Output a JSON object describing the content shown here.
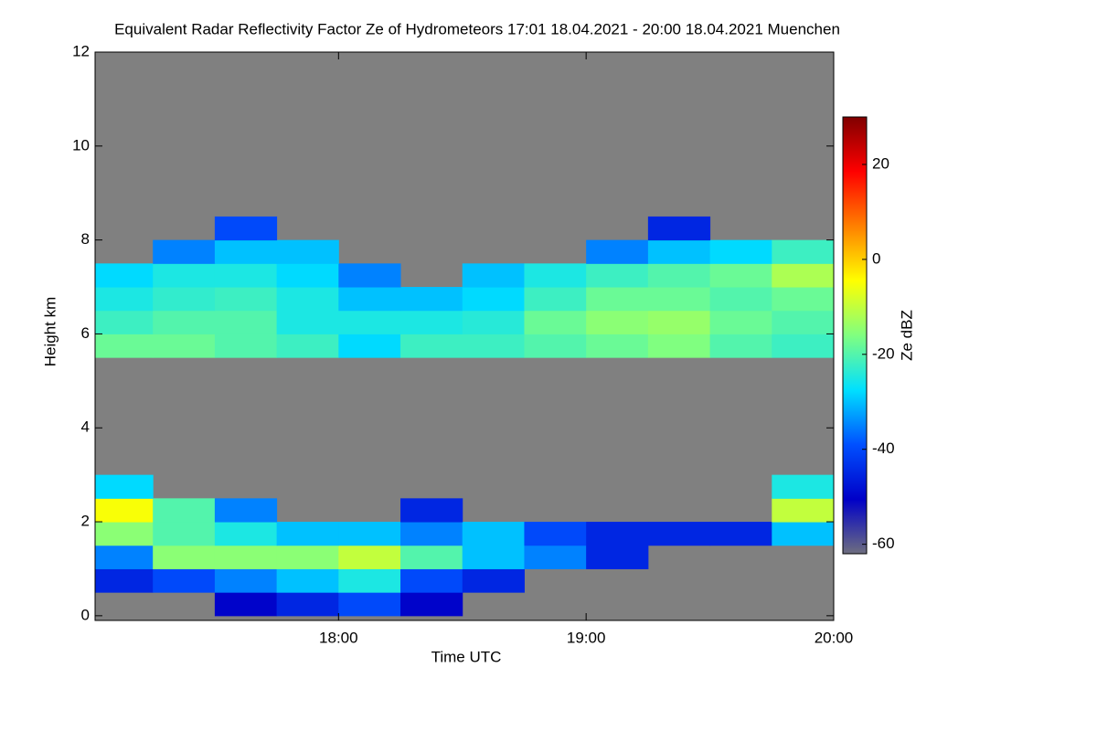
{
  "chart_data": {
    "type": "heatmap",
    "title": "Equivalent Radar Reflectivity Factor Ze of Hydrometeors   17:01 18.04.2021 - 20:00 18.04.2021 Muenchen",
    "x_label": "Time UTC",
    "y_label": "Height km",
    "colorbar_label": "Ze dBZ",
    "x": [
      17.125,
      17.375,
      17.625,
      17.875,
      18.125,
      18.375,
      18.625,
      18.875,
      19.125,
      19.375,
      19.625,
      19.875
    ],
    "y": [
      0.25,
      0.75,
      1.25,
      1.75,
      2.25,
      2.75,
      3.25,
      3.75,
      4.25,
      4.75,
      5.25,
      5.75,
      6.25,
      6.75,
      7.25,
      7.75,
      8.25
    ],
    "z": [
      [
        null,
        null,
        -50,
        -45,
        -40,
        -50,
        null,
        null,
        null,
        null,
        null,
        null
      ],
      [
        -45,
        -40,
        -35,
        -30,
        -25,
        -40,
        -45,
        null,
        null,
        null,
        null,
        null
      ],
      [
        -35,
        -15,
        -15,
        -15,
        -10,
        -20,
        -30,
        -35,
        -45,
        null,
        null,
        null
      ],
      [
        -15,
        -20,
        -25,
        -30,
        -30,
        -35,
        -30,
        -40,
        -45,
        -45,
        -45,
        -30
      ],
      [
        -5,
        -20,
        -35,
        null,
        null,
        -45,
        null,
        null,
        null,
        null,
        null,
        -10
      ],
      [
        -28,
        null,
        null,
        null,
        null,
        null,
        null,
        null,
        null,
        null,
        null,
        -25
      ],
      [
        null,
        null,
        null,
        null,
        null,
        null,
        null,
        null,
        null,
        null,
        null,
        null
      ],
      [
        null,
        null,
        null,
        null,
        null,
        null,
        null,
        null,
        null,
        null,
        null,
        null
      ],
      [
        null,
        null,
        null,
        null,
        null,
        null,
        null,
        null,
        null,
        null,
        null,
        null
      ],
      [
        null,
        null,
        null,
        null,
        null,
        null,
        null,
        null,
        null,
        null,
        null,
        null
      ],
      [
        null,
        null,
        null,
        null,
        null,
        null,
        null,
        null,
        null,
        null,
        null,
        null
      ],
      [
        -18,
        -18,
        -20,
        -22,
        -28,
        -22,
        -22,
        -20,
        -18,
        -16,
        -20,
        -22
      ],
      [
        -22,
        -20,
        -20,
        -25,
        -25,
        -25,
        -24,
        -18,
        -15,
        -14,
        -18,
        -20
      ],
      [
        -25,
        -23,
        -22,
        -25,
        -30,
        -30,
        -28,
        -22,
        -18,
        -18,
        -20,
        -18
      ],
      [
        -28,
        -25,
        -25,
        -28,
        -35,
        null,
        -30,
        -25,
        -22,
        -20,
        -18,
        -12
      ],
      [
        null,
        -35,
        -30,
        -30,
        null,
        null,
        null,
        null,
        -35,
        -30,
        -28,
        -22
      ],
      [
        null,
        null,
        -40,
        null,
        null,
        null,
        null,
        null,
        null,
        -45,
        null,
        null
      ]
    ],
    "xlim": [
      17.0167,
      20.0
    ],
    "xticks": [
      {
        "value": 18,
        "label": "18:00"
      },
      {
        "value": 19,
        "label": "19:00"
      },
      {
        "value": 20,
        "label": "20:00"
      }
    ],
    "ylim": [
      -0.1,
      12
    ],
    "yticks": [
      0,
      2,
      4,
      6,
      8,
      10,
      12
    ],
    "zlim": [
      -62,
      30
    ],
    "zticks": [
      -60,
      -40,
      -20,
      0,
      20
    ],
    "colormap": [
      "#6e6e80",
      "#0000c8",
      "#0050ff",
      "#00e0ff",
      "#80ff80",
      "#ffff00",
      "#ff8000",
      "#ff0000",
      "#800000"
    ],
    "background_color": "#808080"
  }
}
